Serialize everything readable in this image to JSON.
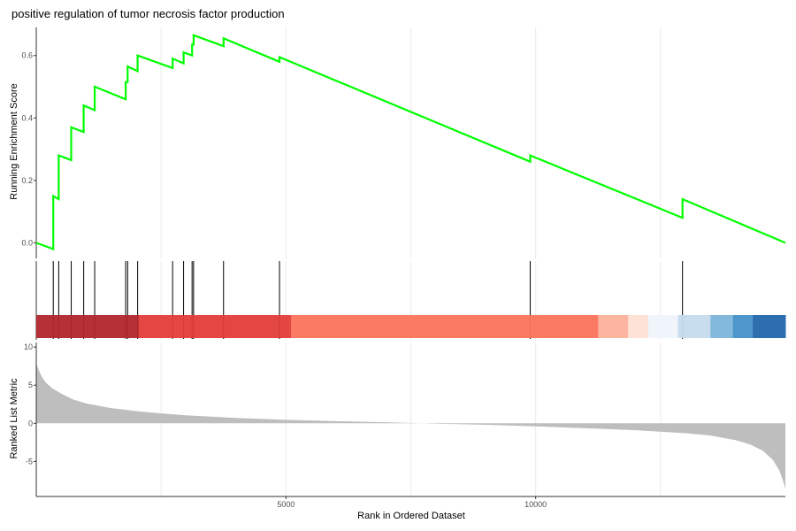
{
  "chart_data": {
    "type": "line",
    "title": "positive regulation of tumor necrosis factor production",
    "xlabel": "Rank in Ordered Dataset",
    "x_ticks": [
      5000,
      10000
    ],
    "x_range": [
      0,
      15000
    ],
    "grid": "vertical",
    "es_panel": {
      "ylabel": "Running Enrichment Score",
      "y_ticks": [
        "0.0",
        "0.2",
        "0.4",
        "0.6"
      ],
      "y_tick_values": [
        0.0,
        0.2,
        0.4,
        0.6
      ],
      "ylim": [
        -0.05,
        0.69
      ],
      "line_color": "#00ff00",
      "points": [
        [
          0,
          0.0
        ],
        [
          340,
          -0.02
        ],
        [
          340,
          0.15
        ],
        [
          450,
          0.14
        ],
        [
          450,
          0.28
        ],
        [
          700,
          0.265
        ],
        [
          700,
          0.37
        ],
        [
          950,
          0.355
        ],
        [
          950,
          0.44
        ],
        [
          1170,
          0.425
        ],
        [
          1170,
          0.5
        ],
        [
          1790,
          0.46
        ],
        [
          1790,
          0.515
        ],
        [
          1830,
          0.515
        ],
        [
          1830,
          0.565
        ],
        [
          2030,
          0.55
        ],
        [
          2030,
          0.6
        ],
        [
          2730,
          0.56
        ],
        [
          2730,
          0.59
        ],
        [
          2950,
          0.575
        ],
        [
          2950,
          0.61
        ],
        [
          3120,
          0.6
        ],
        [
          3120,
          0.635
        ],
        [
          3150,
          0.635
        ],
        [
          3150,
          0.665
        ],
        [
          3750,
          0.63
        ],
        [
          3750,
          0.655
        ],
        [
          4870,
          0.58
        ],
        [
          4870,
          0.595
        ],
        [
          9890,
          0.26
        ],
        [
          9890,
          0.28
        ],
        [
          12940,
          0.08
        ],
        [
          12940,
          0.14
        ],
        [
          15000,
          0.0
        ]
      ]
    },
    "hits": [
      340,
      450,
      700,
      950,
      1170,
      1790,
      1830,
      2030,
      2730,
      2950,
      3120,
      3150,
      3750,
      4870,
      9890,
      12940
    ],
    "color_bar": [
      {
        "from": 0,
        "to": 2050,
        "color": "#b2262c"
      },
      {
        "from": 2050,
        "to": 5100,
        "color": "#e13c39"
      },
      {
        "from": 5100,
        "to": 11250,
        "color": "#fb735c"
      },
      {
        "from": 11250,
        "to": 11850,
        "color": "#fcb19a"
      },
      {
        "from": 11850,
        "to": 12250,
        "color": "#fee0d3"
      },
      {
        "from": 12250,
        "to": 12850,
        "color": "#eff3fb"
      },
      {
        "from": 12850,
        "to": 13500,
        "color": "#c5dbec"
      },
      {
        "from": 13500,
        "to": 13950,
        "color": "#7bb5db"
      },
      {
        "from": 13950,
        "to": 14350,
        "color": "#4590c8"
      },
      {
        "from": 14350,
        "to": 15000,
        "color": "#2266ab"
      }
    ],
    "ranked_panel": {
      "ylabel": "Ranked List Metric",
      "y_ticks": [
        "10",
        "5",
        "0",
        "-5"
      ],
      "y_tick_values": [
        10,
        5,
        0,
        -5
      ],
      "ylim": [
        -9.6,
        10.6
      ],
      "fill_color": "#bebebe",
      "curve": [
        [
          0,
          8.0
        ],
        [
          25,
          7.4
        ],
        [
          60,
          6.8
        ],
        [
          120,
          6.0
        ],
        [
          200,
          5.3
        ],
        [
          320,
          4.6
        ],
        [
          500,
          3.9
        ],
        [
          750,
          3.1
        ],
        [
          1000,
          2.6
        ],
        [
          1500,
          2.0
        ],
        [
          2000,
          1.6
        ],
        [
          2500,
          1.3
        ],
        [
          3000,
          1.05
        ],
        [
          4000,
          0.7
        ],
        [
          5000,
          0.45
        ],
        [
          6000,
          0.28
        ],
        [
          7000,
          0.14
        ],
        [
          7500,
          0.05
        ],
        [
          8000,
          -0.05
        ],
        [
          9000,
          -0.2
        ],
        [
          10000,
          -0.4
        ],
        [
          11000,
          -0.65
        ],
        [
          12000,
          -0.9
        ],
        [
          13000,
          -1.3
        ],
        [
          13500,
          -1.6
        ],
        [
          14000,
          -2.2
        ],
        [
          14300,
          -2.8
        ],
        [
          14550,
          -3.6
        ],
        [
          14750,
          -4.8
        ],
        [
          14880,
          -6.2
        ],
        [
          14950,
          -7.5
        ],
        [
          15000,
          -8.6
        ]
      ]
    }
  }
}
